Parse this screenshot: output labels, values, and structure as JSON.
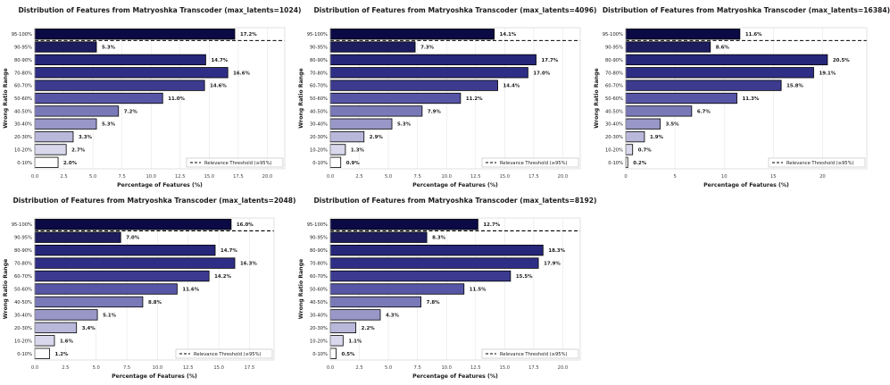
{
  "chart_data": [
    {
      "type": "bar",
      "orientation": "horizontal",
      "title": "Distribution of Features from Matryoshka Transcoder (max_latents=1024)",
      "xlabel": "Percentage of Features (%)",
      "ylabel": "Wrong Ratio Range",
      "categories": [
        "95-100%",
        "90-95%",
        "80-90%",
        "70-80%",
        "60-70%",
        "50-60%",
        "40-50%",
        "30-40%",
        "20-30%",
        "10-20%",
        "0-10%"
      ],
      "values": [
        17.2,
        5.3,
        14.7,
        16.6,
        14.6,
        11.0,
        7.2,
        5.3,
        3.3,
        2.7,
        2.0
      ],
      "value_labels": [
        "17.2%",
        "5.3%",
        "14.7%",
        "16.6%",
        "14.6%",
        "11.0%",
        "7.2%",
        "5.3%",
        "3.3%",
        "2.7%",
        "2.0%"
      ],
      "xlim": [
        0,
        21.5
      ],
      "xticks": [
        0.0,
        2.5,
        5.0,
        7.5,
        10.0,
        12.5,
        15.0,
        17.5,
        20.0
      ],
      "xtick_labels": [
        "0.0",
        "2.5",
        "5.0",
        "7.5",
        "10.0",
        "12.5",
        "15.0",
        "17.5",
        "20.0"
      ],
      "threshold_label": "Relevance Threshold (≥95%)",
      "legend": "bottom-right",
      "grid": true
    },
    {
      "type": "bar",
      "orientation": "horizontal",
      "title": "Distribution of Features from Matryoshka Transcoder (max_latents=4096)",
      "xlabel": "Percentage of Features (%)",
      "ylabel": "Wrong Ratio Range",
      "categories": [
        "95-100%",
        "90-95%",
        "80-90%",
        "70-80%",
        "60-70%",
        "50-60%",
        "40-50%",
        "30-40%",
        "20-30%",
        "10-20%",
        "0-10%"
      ],
      "values": [
        14.1,
        7.3,
        17.7,
        17.0,
        14.4,
        11.2,
        7.9,
        5.3,
        2.9,
        1.3,
        0.9
      ],
      "value_labels": [
        "14.1%",
        "7.3%",
        "17.7%",
        "17.0%",
        "14.4%",
        "11.2%",
        "7.9%",
        "5.3%",
        "2.9%",
        "1.3%",
        "0.9%"
      ],
      "xlim": [
        0,
        21.5
      ],
      "xticks": [
        0.0,
        2.5,
        5.0,
        7.5,
        10.0,
        12.5,
        15.0,
        17.5,
        20.0
      ],
      "xtick_labels": [
        "0.0",
        "2.5",
        "5.0",
        "7.5",
        "10.0",
        "12.5",
        "15.0",
        "17.5",
        "20.0"
      ],
      "threshold_label": "Relevance Threshold (≥95%)",
      "legend": "bottom-right",
      "grid": true
    },
    {
      "type": "bar",
      "orientation": "horizontal",
      "title": "Distribution of Features from Matryoshka Transcoder (max_latents=16384)",
      "xlabel": "Percentage of Features (%)",
      "ylabel": "Wrong Ratio Range",
      "categories": [
        "95-100%",
        "90-95%",
        "80-90%",
        "70-80%",
        "60-70%",
        "50-60%",
        "40-50%",
        "30-40%",
        "20-30%",
        "10-20%",
        "0-10%"
      ],
      "values": [
        11.6,
        8.6,
        20.5,
        19.1,
        15.8,
        11.3,
        6.7,
        3.5,
        1.9,
        0.7,
        0.2
      ],
      "value_labels": [
        "11.6%",
        "8.6%",
        "20.5%",
        "19.1%",
        "15.8%",
        "11.3%",
        "6.7%",
        "3.5%",
        "1.9%",
        "0.7%",
        "0.2%"
      ],
      "xlim": [
        0,
        24.5
      ],
      "xticks": [
        0,
        5,
        10,
        15,
        20
      ],
      "xtick_labels": [
        "0",
        "5",
        "10",
        "15",
        "20"
      ],
      "threshold_label": "Relevance Threshold (≥95%)",
      "legend": "bottom-right",
      "grid": true
    },
    {
      "type": "bar",
      "orientation": "horizontal",
      "title": "Distribution of Features from Matryoshka Transcoder (max_latents=2048)",
      "xlabel": "Percentage of Features (%)",
      "ylabel": "Wrong Ratio Range",
      "categories": [
        "95-100%",
        "90-95%",
        "80-90%",
        "70-80%",
        "60-70%",
        "50-60%",
        "40-50%",
        "30-40%",
        "20-30%",
        "10-20%",
        "0-10%"
      ],
      "values": [
        16.0,
        7.0,
        14.7,
        16.3,
        14.2,
        11.6,
        8.8,
        5.1,
        3.4,
        1.6,
        1.2
      ],
      "value_labels": [
        "16.0%",
        "7.0%",
        "14.7%",
        "16.3%",
        "14.2%",
        "11.6%",
        "8.8%",
        "5.1%",
        "3.4%",
        "1.6%",
        "1.2%"
      ],
      "xlim": [
        0,
        19.5
      ],
      "xticks": [
        0.0,
        2.5,
        5.0,
        7.5,
        10.0,
        12.5,
        15.0,
        17.5
      ],
      "xtick_labels": [
        "0.0",
        "2.5",
        "5.0",
        "7.5",
        "10.0",
        "12.5",
        "15.0",
        "17.5"
      ],
      "threshold_label": "Relevance Threshold (≥95%)",
      "legend": "bottom-right",
      "grid": true
    },
    {
      "type": "bar",
      "orientation": "horizontal",
      "title": "Distribution of Features from Matryoshka Transcoder (max_latents=8192)",
      "xlabel": "Percentage of Features (%)",
      "ylabel": "Wrong Ratio Range",
      "categories": [
        "95-100%",
        "90-95%",
        "80-90%",
        "70-80%",
        "60-70%",
        "50-60%",
        "40-50%",
        "30-40%",
        "20-30%",
        "10-20%",
        "0-10%"
      ],
      "values": [
        12.7,
        8.3,
        18.3,
        17.9,
        15.5,
        11.5,
        7.8,
        4.3,
        2.2,
        1.1,
        0.5
      ],
      "value_labels": [
        "12.7%",
        "8.3%",
        "18.3%",
        "17.9%",
        "15.5%",
        "11.5%",
        "7.8%",
        "4.3%",
        "2.2%",
        "1.1%",
        "0.5%"
      ],
      "xlim": [
        0,
        21.5
      ],
      "xticks": [
        0.0,
        2.5,
        5.0,
        7.5,
        10.0,
        12.5,
        15.0,
        17.5,
        20.0
      ],
      "xtick_labels": [
        "0.0",
        "2.5",
        "5.0",
        "7.5",
        "10.0",
        "12.5",
        "15.0",
        "17.5",
        "20.0"
      ],
      "threshold_label": "Relevance Threshold (≥95%)",
      "legend": "bottom-right",
      "grid": true
    }
  ],
  "colors": {
    "bars": [
      "#0b0a45",
      "#1c1c5e",
      "#26267a",
      "#2f2e86",
      "#3c3b90",
      "#5756a6",
      "#7a79b8",
      "#9897c8",
      "#b9b8da",
      "#d8d7ec",
      "#ffffff"
    ],
    "bar_edge": "#000000",
    "grid": "#e6e6e6",
    "text": "#1a1a1a",
    "threshold": "#000000"
  }
}
